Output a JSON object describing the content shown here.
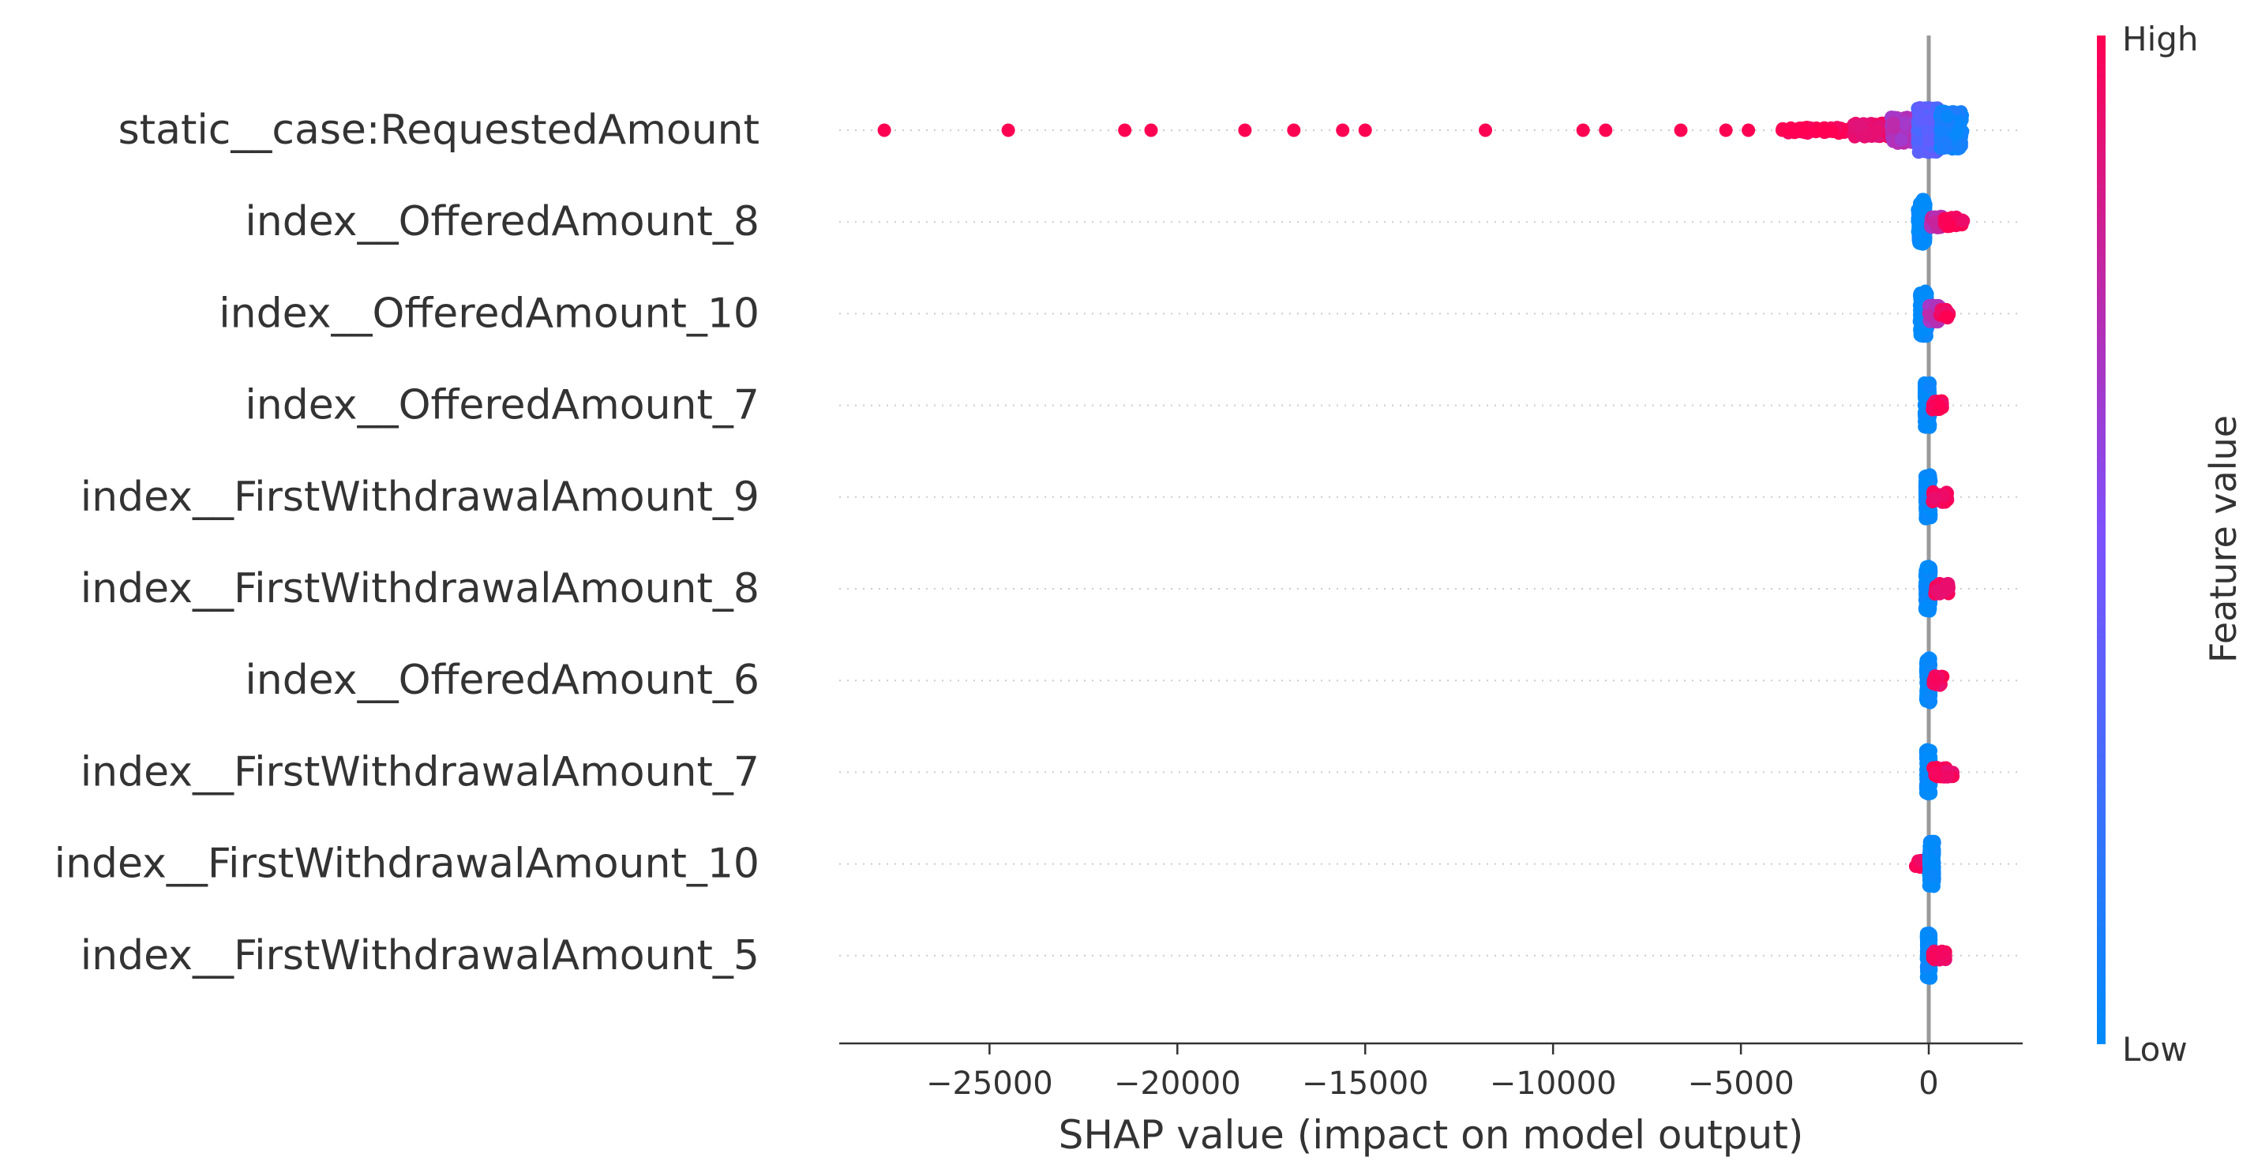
{
  "chart_data": {
    "type": "scatter",
    "subtype": "shap-beeswarm",
    "xlabel": "SHAP value (impact on model output)",
    "xlim": [
      -29000,
      2500
    ],
    "xticks": [
      -25000,
      -20000,
      -15000,
      -10000,
      -5000,
      0
    ],
    "xtick_labels": [
      "−25000",
      "−20000",
      "−15000",
      "−10000",
      "−5000",
      "0"
    ],
    "features": [
      "static__case:RequestedAmount",
      "index__OfferedAmount_8",
      "index__OfferedAmount_10",
      "index__OfferedAmount_7",
      "index__FirstWithdrawalAmount_9",
      "index__FirstWithdrawalAmount_8",
      "index__OfferedAmount_6",
      "index__FirstWithdrawalAmount_7",
      "index__FirstWithdrawalAmount_10",
      "index__FirstWithdrawalAmount_5"
    ],
    "colorbar": {
      "label": "Feature value",
      "high": "High",
      "low": "Low",
      "low_color": "#008bfb",
      "mid_color": "#7c52ff",
      "high_color": "#ff0052"
    },
    "grid": "dotted horizontal row lines",
    "series": [
      {
        "feature": "static__case:RequestedAmount",
        "outliers": [
          -27800,
          -24500,
          -21400,
          -20700,
          -18200,
          -16900,
          -15600,
          -15000,
          -11800,
          -9200,
          -8600,
          -6600,
          -5400,
          -4800,
          -3900,
          -3600,
          -3300,
          -3000
        ],
        "clusters": [
          {
            "x0": -3900,
            "x1": -2000,
            "spread": 0.12,
            "color": 1.0,
            "count": 70
          },
          {
            "x0": -2000,
            "x1": -1000,
            "spread": 0.3,
            "color": 0.92,
            "count": 120
          },
          {
            "x0": -1000,
            "x1": -300,
            "spread": 0.55,
            "color": 0.7,
            "count": 160
          },
          {
            "x0": -300,
            "x1": 300,
            "spread": 0.95,
            "color": 0.35,
            "count": 260
          },
          {
            "x0": 300,
            "x1": 900,
            "spread": 0.8,
            "color": 0.08,
            "count": 180
          }
        ]
      },
      {
        "feature": "index__OfferedAmount_8",
        "clusters": [
          {
            "x0": -300,
            "x1": -80,
            "spread": 0.95,
            "color": 0.0,
            "count": 200
          },
          {
            "x0": 50,
            "x1": 400,
            "spread": 0.25,
            "color": 0.75,
            "count": 50
          },
          {
            "x0": 400,
            "x1": 950,
            "spread": 0.2,
            "color": 0.98,
            "count": 40
          }
        ]
      },
      {
        "feature": "index__OfferedAmount_10",
        "clusters": [
          {
            "x0": -250,
            "x1": -30,
            "spread": 0.95,
            "color": 0.0,
            "count": 200
          },
          {
            "x0": 0,
            "x1": 300,
            "spread": 0.35,
            "color": 0.7,
            "count": 40
          },
          {
            "x0": 300,
            "x1": 550,
            "spread": 0.2,
            "color": 0.98,
            "count": 25
          }
        ]
      },
      {
        "feature": "index__OfferedAmount_7",
        "clusters": [
          {
            "x0": -120,
            "x1": 40,
            "spread": 0.95,
            "color": 0.0,
            "count": 200
          },
          {
            "x0": 100,
            "x1": 380,
            "spread": 0.2,
            "color": 0.97,
            "count": 25
          }
        ]
      },
      {
        "feature": "index__FirstWithdrawalAmount_9",
        "clusters": [
          {
            "x0": -100,
            "x1": 60,
            "spread": 0.95,
            "color": 0.0,
            "count": 200
          },
          {
            "x0": 100,
            "x1": 500,
            "spread": 0.22,
            "color": 0.95,
            "count": 35
          }
        ]
      },
      {
        "feature": "index__FirstWithdrawalAmount_8",
        "clusters": [
          {
            "x0": -100,
            "x1": 60,
            "spread": 0.95,
            "color": 0.0,
            "count": 200
          },
          {
            "x0": 100,
            "x1": 550,
            "spread": 0.22,
            "color": 0.95,
            "count": 35
          }
        ]
      },
      {
        "feature": "index__OfferedAmount_6",
        "clusters": [
          {
            "x0": -80,
            "x1": 60,
            "spread": 0.95,
            "color": 0.0,
            "count": 200
          },
          {
            "x0": 120,
            "x1": 380,
            "spread": 0.2,
            "color": 0.97,
            "count": 25
          }
        ]
      },
      {
        "feature": "index__FirstWithdrawalAmount_7",
        "clusters": [
          {
            "x0": -80,
            "x1": 60,
            "spread": 0.95,
            "color": 0.0,
            "count": 200
          },
          {
            "x0": 100,
            "x1": 650,
            "spread": 0.2,
            "color": 0.97,
            "count": 35
          }
        ]
      },
      {
        "feature": "index__FirstWithdrawalAmount_10",
        "clusters": [
          {
            "x0": -350,
            "x1": -80,
            "spread": 0.15,
            "color": 0.95,
            "count": 20
          },
          {
            "x0": 0,
            "x1": 150,
            "spread": 0.95,
            "color": 0.0,
            "count": 200
          }
        ]
      },
      {
        "feature": "index__FirstWithdrawalAmount_5",
        "clusters": [
          {
            "x0": -60,
            "x1": 60,
            "spread": 0.95,
            "color": 0.0,
            "count": 200
          },
          {
            "x0": 100,
            "x1": 450,
            "spread": 0.2,
            "color": 0.96,
            "count": 25
          }
        ]
      }
    ]
  }
}
